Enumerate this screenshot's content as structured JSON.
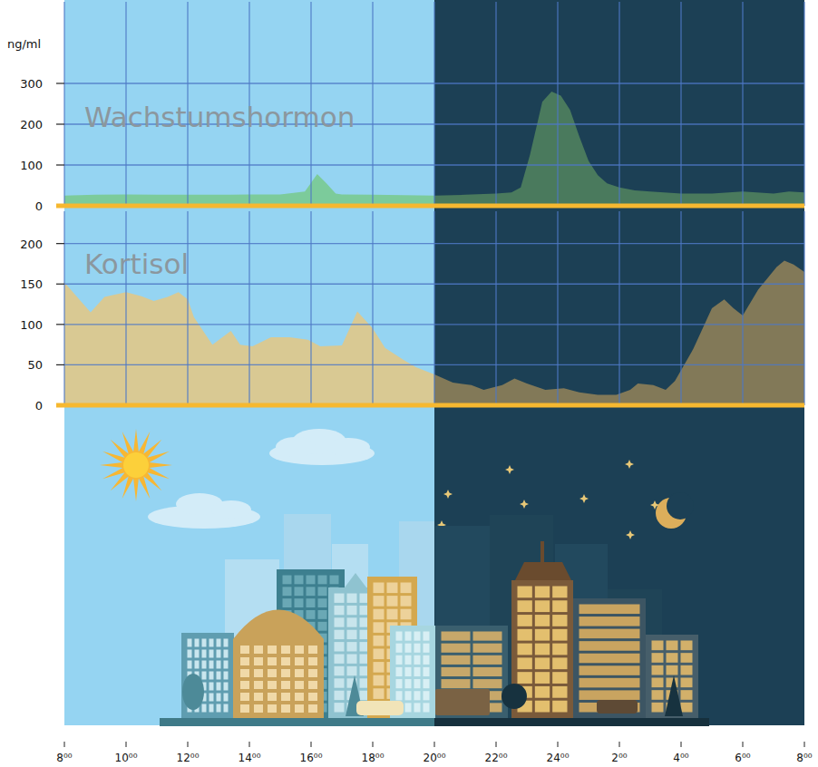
{
  "chart_data": [
    {
      "type": "area",
      "title": "Wachstumshormon",
      "y_label": "ng/ml",
      "x": [
        8,
        9,
        10,
        11,
        12,
        13,
        14,
        15,
        15.8,
        16.2,
        16.5,
        16.8,
        17,
        18,
        19,
        20,
        21,
        22,
        22.5,
        22.8,
        23.1,
        23.5,
        23.8,
        24.1,
        24.4,
        24.7,
        25,
        25.3,
        25.6,
        26,
        26.5,
        27,
        28,
        29,
        30,
        31,
        31.5,
        32
      ],
      "values": [
        25,
        27,
        28,
        27,
        27,
        27,
        28,
        28,
        35,
        78,
        55,
        30,
        28,
        27,
        26,
        25,
        27,
        30,
        33,
        45,
        125,
        255,
        280,
        270,
        235,
        170,
        110,
        75,
        55,
        45,
        38,
        35,
        30,
        30,
        35,
        30,
        35,
        33
      ],
      "color": "#7ccb9b",
      "night": [
        20,
        32
      ],
      "xlim": [
        8,
        32
      ],
      "xticks": [
        8,
        10,
        12,
        14,
        16,
        18,
        20,
        22,
        24,
        26,
        28,
        30,
        32
      ],
      "ylim": [
        0,
        500
      ],
      "yticks": [
        0,
        100,
        200,
        300
      ],
      "grid": true,
      "tick_labels": "y"
    },
    {
      "type": "area",
      "title": "Kortisol",
      "x": [
        8,
        8.85,
        9.3,
        10,
        10.5,
        10.9,
        11.35,
        11.7,
        12,
        12.2,
        12.8,
        13.4,
        13.7,
        14.1,
        14.7,
        15.3,
        15.9,
        16.3,
        17,
        17.5,
        18,
        18.4,
        19,
        19.4,
        20,
        20.6,
        21.2,
        21.6,
        22.2,
        22.6,
        23,
        23.6,
        24.2,
        24.7,
        25.3,
        25.9,
        26.35,
        26.6,
        27.1,
        27.5,
        27.8,
        28.4,
        29,
        29.4,
        29.7,
        30,
        30.5,
        31.1,
        31.35,
        31.65,
        32
      ],
      "values": [
        152,
        115,
        134,
        140,
        135,
        129,
        134,
        140,
        131,
        109,
        75,
        92,
        75,
        73,
        84,
        84,
        81,
        73,
        74,
        116,
        95,
        71,
        56,
        47,
        38,
        28,
        25,
        19,
        25,
        33,
        27,
        19,
        21,
        16,
        13,
        13,
        19,
        27,
        25,
        19,
        30,
        70,
        120,
        131,
        120,
        111,
        143,
        171,
        179,
        174,
        165
      ],
      "color": "#d9c993",
      "night": [
        20,
        32
      ],
      "xlim": [
        8,
        32
      ],
      "xticks": [
        {
          "value": 8,
          "label": "8⁰⁰"
        },
        {
          "value": 10,
          "label": "10⁰⁰"
        },
        {
          "value": 12,
          "label": "12⁰⁰"
        },
        {
          "value": 14,
          "label": "14⁰⁰"
        },
        {
          "value": 16,
          "label": "16⁰⁰"
        },
        {
          "value": 18,
          "label": "18⁰⁰"
        },
        {
          "value": 20,
          "label": "20⁰⁰"
        },
        {
          "value": 22,
          "label": "22⁰⁰"
        },
        {
          "value": 24,
          "label": "24⁰⁰"
        },
        {
          "value": 26,
          "label": "2⁰⁰"
        },
        {
          "value": 28,
          "label": "4⁰⁰"
        },
        {
          "value": 30,
          "label": "6⁰⁰"
        },
        {
          "value": 32,
          "label": "8⁰⁰"
        }
      ],
      "ylim": [
        0,
        240
      ],
      "yticks": [
        0,
        50,
        100,
        150,
        200
      ],
      "grid": true,
      "tick_labels": true
    }
  ]
}
